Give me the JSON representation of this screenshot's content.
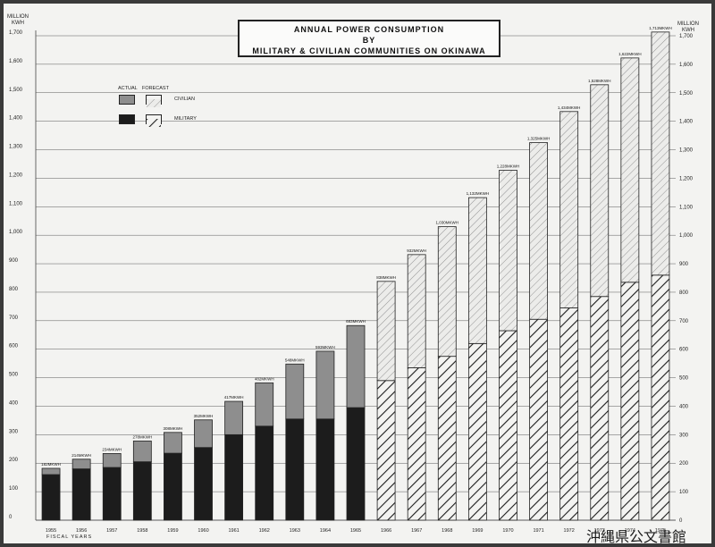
{
  "title_lines": [
    "ANNUAL POWER CONSUMPTION",
    "BY",
    "MILITARY & CIVILIAN COMMUNITIES ON OKINAWA"
  ],
  "unit_left": [
    "MILLION",
    "KWH"
  ],
  "unit_right": [
    "MILLION",
    "KWH"
  ],
  "legend": {
    "actual": "ACTUAL",
    "forecast": "FORECAST",
    "civilian": "CIVILIAN",
    "military": "MILITARY"
  },
  "footer": "FISCAL YEARS",
  "watermark": "沖縄県公文書館",
  "colors": {
    "paper": "#f3f3f1",
    "military_actual": "#1c1c1c",
    "civilian_actual": "#8e8e8e",
    "outline": "#222222"
  },
  "chart_data": {
    "type": "bar",
    "stacked": true,
    "ylim": [
      0,
      1700
    ],
    "y_ticks_left": [
      "0",
      "100",
      "200",
      "300",
      "400",
      "500",
      "600",
      "700",
      "800",
      "900",
      "1,000",
      "1,100",
      "1,200",
      "1,300",
      "1,400",
      "1,500",
      "1,600",
      "1,700"
    ],
    "y_ticks_right": [
      "0",
      "100",
      "200",
      "300",
      "400",
      "500",
      "600",
      "700",
      "800",
      "900",
      "1,000",
      "1,100",
      "1,200",
      "1,300",
      "1,400",
      "1,500",
      "1,600",
      "1,700"
    ],
    "grid": true,
    "categories": [
      "1955",
      "1956",
      "1957",
      "1958",
      "1959",
      "1960",
      "1961",
      "1962",
      "1963",
      "1964",
      "1965",
      "1966",
      "1967",
      "1968",
      "1969",
      "1970",
      "1971",
      "1972",
      "1973",
      "1974",
      "1975"
    ],
    "total_labels": [
      "182MKWH",
      "214MKWH",
      "234MKWH",
      "278MKWH",
      "308MKWH",
      "352MKWH",
      "417MKWH",
      "482MKWH",
      "548MKWH",
      "593MKWH",
      "683MKWH",
      "838MKWH",
      "932MKWH",
      "1,030MKWH",
      "1,132MKWH",
      "1,228MKWH",
      "1,325MKWH",
      "1,434MKWH",
      "1,528MKWH",
      "1,622MKWH",
      "1,713MKWH"
    ],
    "status": [
      "actual",
      "actual",
      "actual",
      "actual",
      "actual",
      "actual",
      "actual",
      "actual",
      "actual",
      "actual",
      "actual",
      "forecast",
      "forecast",
      "forecast",
      "forecast",
      "forecast",
      "forecast",
      "forecast",
      "forecast",
      "forecast",
      "forecast"
    ],
    "series": [
      {
        "name": "MILITARY",
        "values": [
          160,
          180,
          185,
          205,
          235,
          255,
          300,
          330,
          355,
          355,
          395,
          490,
          535,
          575,
          620,
          665,
          705,
          745,
          785,
          835,
          860
        ]
      },
      {
        "name": "CIVILIAN",
        "values": [
          22,
          34,
          49,
          73,
          73,
          97,
          117,
          152,
          193,
          238,
          288,
          348,
          397,
          455,
          512,
          563,
          620,
          689,
          743,
          787,
          853
        ]
      }
    ]
  }
}
